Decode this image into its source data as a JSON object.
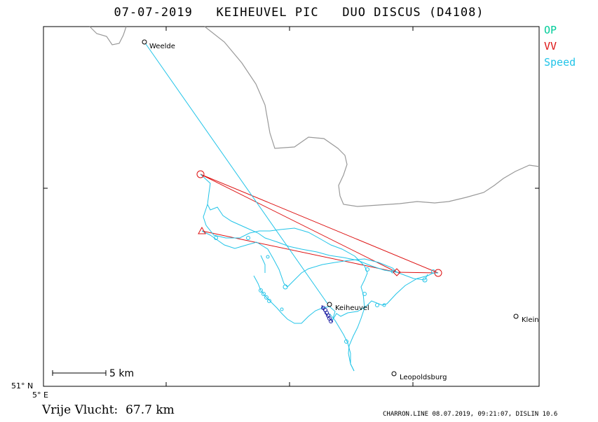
{
  "title": {
    "date": "07-07-2019",
    "site": "KEIHEUVEL PIC",
    "glider": "DUO DISCUS (D4108)"
  },
  "legend": [
    {
      "label": "OP",
      "color": "#00cc99"
    },
    {
      "label": "VV",
      "color": "#dd1111"
    },
    {
      "label": "Speed",
      "color": "#22c4e8"
    }
  ],
  "places": [
    {
      "name": "Weelde",
      "marker": "circle"
    },
    {
      "name": "Keiheuvel",
      "marker": "circle"
    },
    {
      "name": "Klein",
      "marker": "circle"
    },
    {
      "name": "Leopoldsburg",
      "marker": "circle"
    }
  ],
  "turnpoints": [
    {
      "marker": "circle"
    },
    {
      "marker": "circle"
    },
    {
      "marker": "triangle"
    },
    {
      "marker": "diamond"
    }
  ],
  "scale_bar": {
    "label": "5 km"
  },
  "axis": {
    "lat_label": "51° N",
    "lon_label": "5° E"
  },
  "footer": {
    "distance_label": "Vrije Vlucht:",
    "distance_value": "67.7 km",
    "credit": "CHARRON.LINE 08.07.2019, 09:21:07, DISLIN 10.6"
  },
  "colors": {
    "track": "#22c4e8",
    "task": "#dd1111",
    "border": "#999999",
    "start_segment": "#1a1aa0"
  },
  "icons": [
    "circle-marker-icon",
    "triangle-marker-icon",
    "diamond-marker-icon"
  ]
}
